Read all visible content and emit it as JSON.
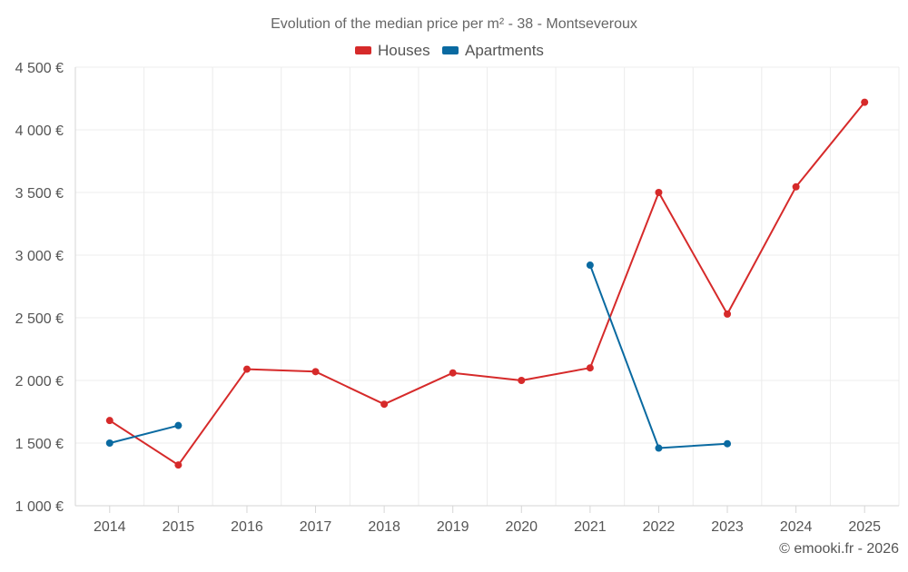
{
  "chart_data": {
    "type": "line",
    "title": "Evolution of the median price per m² - 38 - Montseveroux",
    "xlabel": "",
    "ylabel": "",
    "categories": [
      "2014",
      "2015",
      "2016",
      "2017",
      "2018",
      "2019",
      "2020",
      "2021",
      "2022",
      "2023",
      "2024",
      "2025"
    ],
    "ylim": [
      1000,
      4500
    ],
    "yticks": [
      1000,
      1500,
      2000,
      2500,
      3000,
      3500,
      4000,
      4500
    ],
    "ytick_labels": [
      "1 000 €",
      "1 500 €",
      "2 000 €",
      "2 500 €",
      "3 000 €",
      "3 500 €",
      "4 000 €",
      "4 500 €"
    ],
    "grid": true,
    "legend_position": "top-center",
    "series": [
      {
        "name": "Houses",
        "color": "#d62a2a",
        "values": [
          1680,
          1325,
          2090,
          2070,
          1810,
          2060,
          2000,
          2100,
          3500,
          2530,
          3545,
          4220
        ]
      },
      {
        "name": "Apartments",
        "color": "#0a6aa1",
        "values": [
          1500,
          1640,
          null,
          null,
          null,
          null,
          null,
          2920,
          1460,
          1495,
          null,
          null
        ]
      }
    ],
    "credit": "© emooki.fr - 2026"
  }
}
